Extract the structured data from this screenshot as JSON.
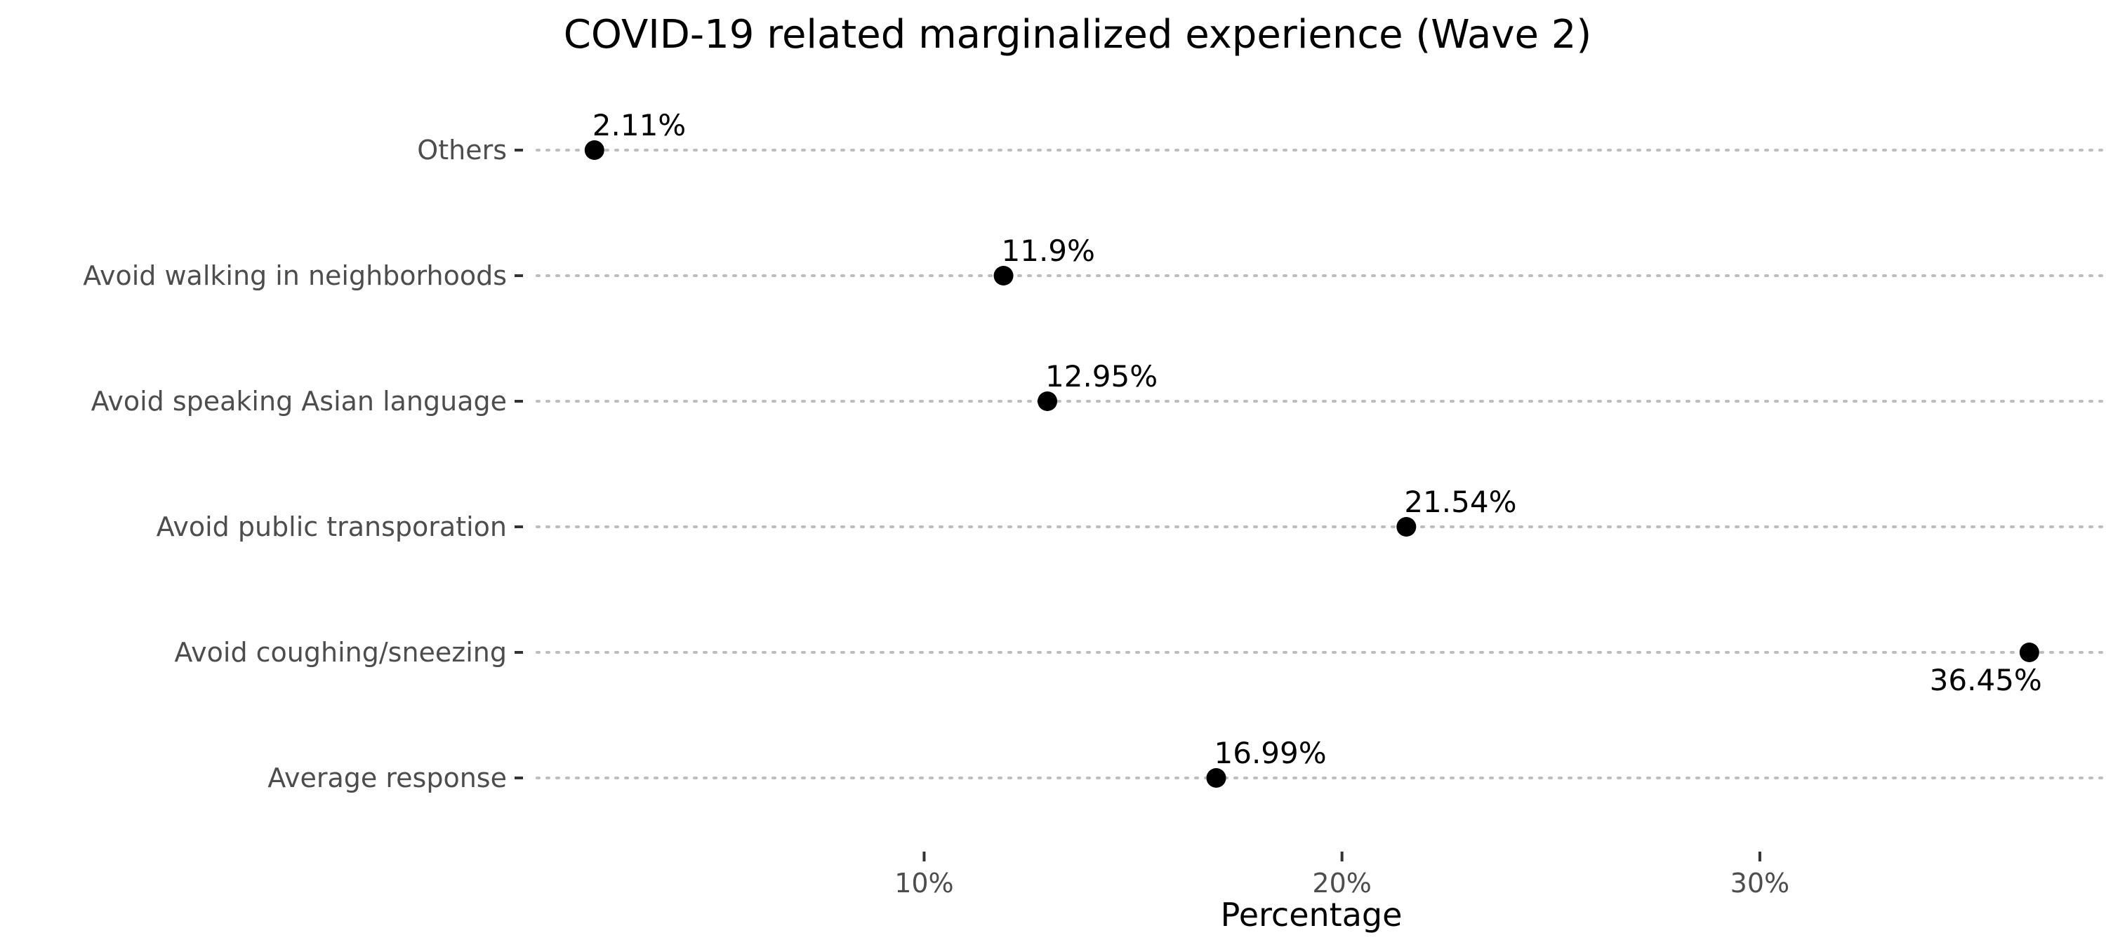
{
  "chart_data": {
    "type": "scatter",
    "title": "COVID-19 related marginalized experience (Wave 2)",
    "xlabel": "Percentage",
    "ylabel": "",
    "xlim": [
      0.4,
      38.2
    ],
    "x_ticks": [
      {
        "value": 10,
        "label": "10%"
      },
      {
        "value": 20,
        "label": "20%"
      },
      {
        "value": 30,
        "label": "30%"
      }
    ],
    "grid": "horizontal dotted guide lines per category",
    "legend": "none",
    "point_color": "#000000",
    "categories": [
      "Others",
      "Avoid walking in neighborhoods",
      "Avoid speaking Asian language",
      "Avoid public transporation",
      "Avoid coughing/sneezing",
      "Average response"
    ],
    "values": [
      2.11,
      11.9,
      12.95,
      21.54,
      36.45,
      16.99
    ],
    "data_labels": [
      "2.11%",
      "11.9%",
      "12.95%",
      "21.54%",
      "36.45%",
      "16.99%"
    ]
  }
}
